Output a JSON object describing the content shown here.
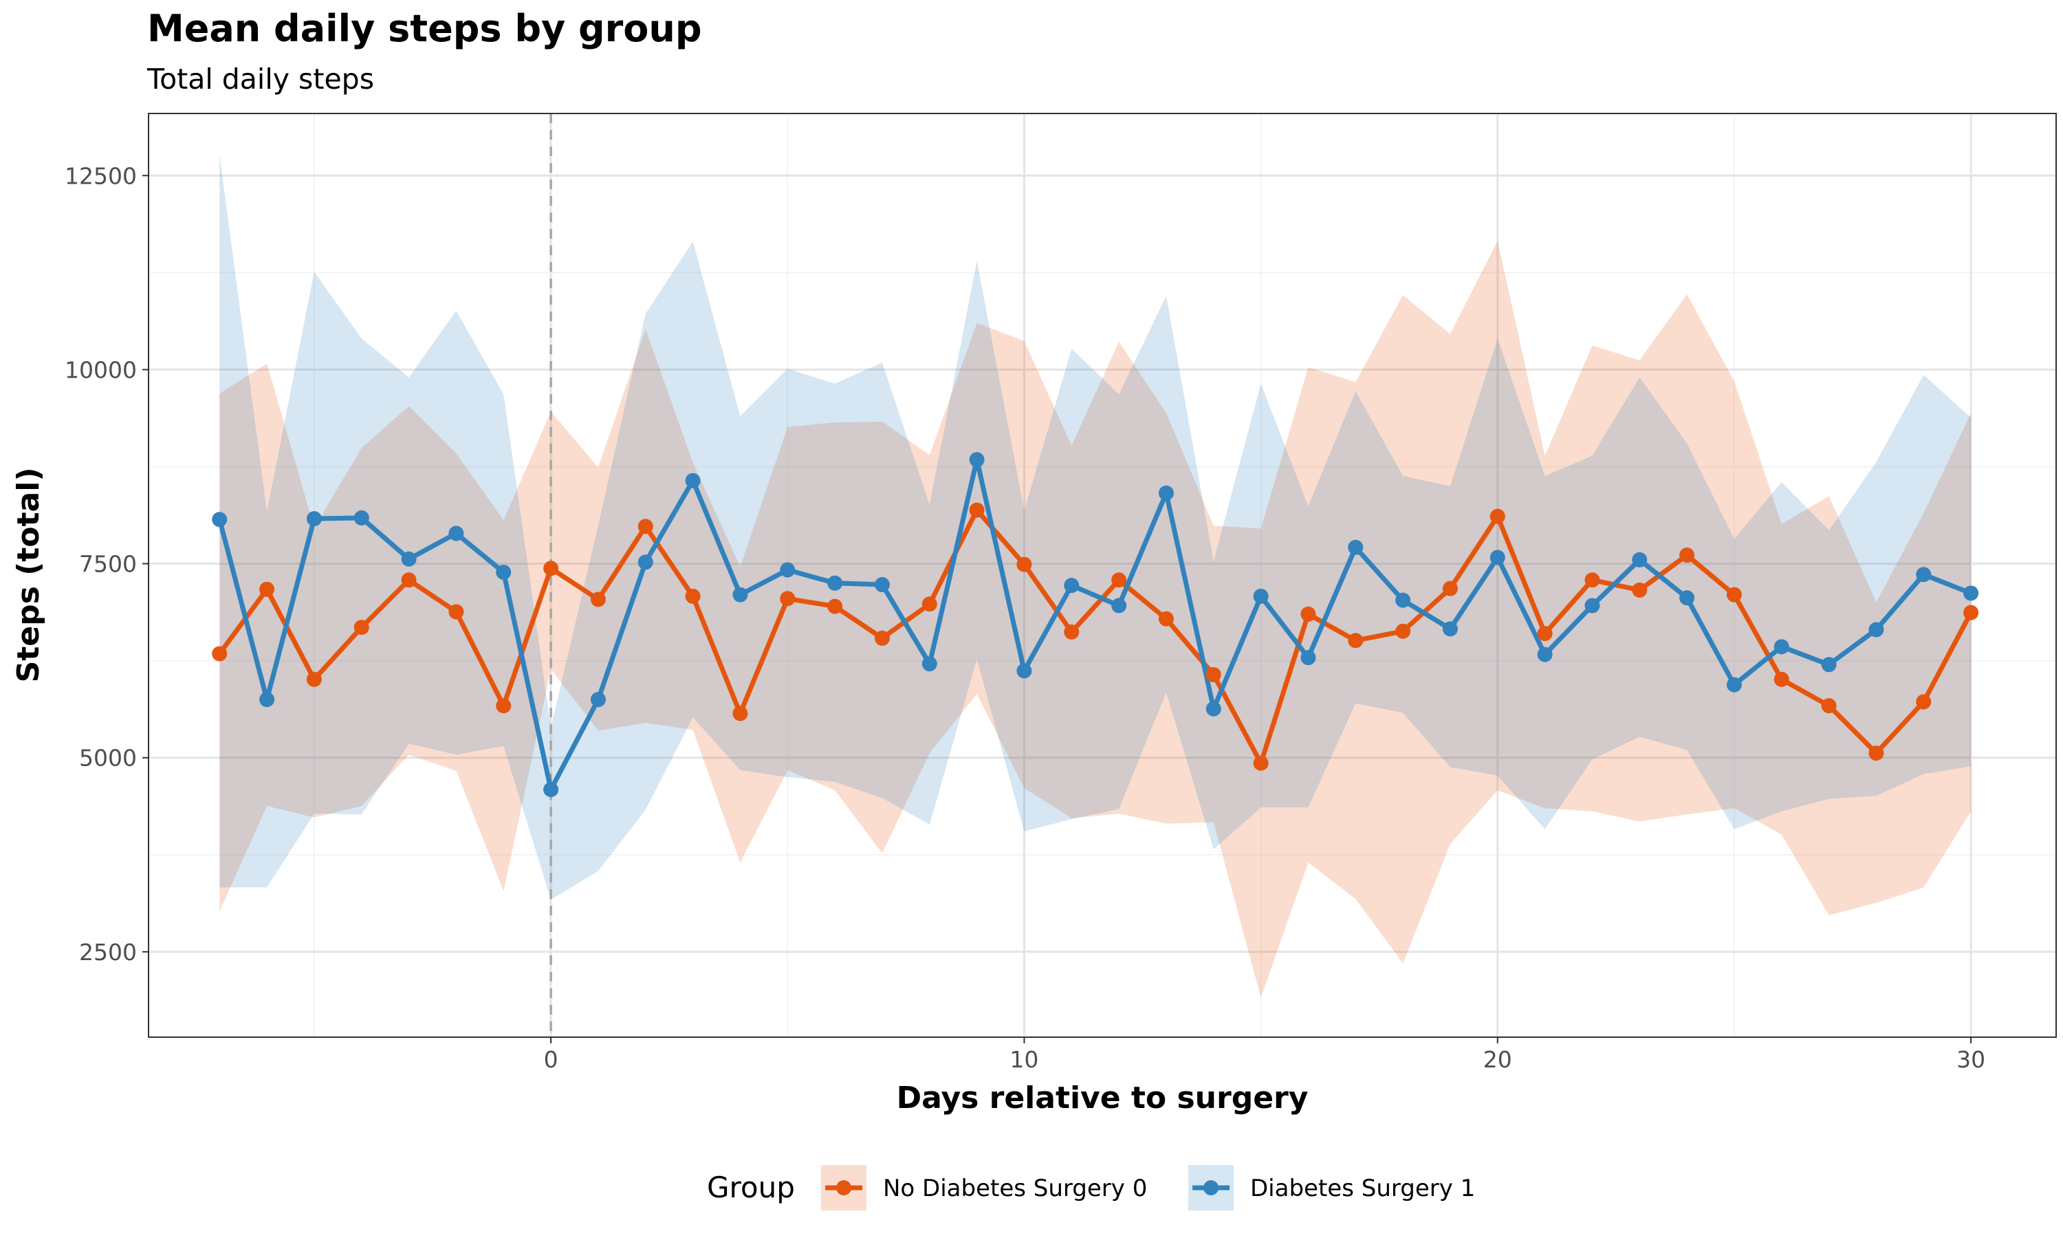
{
  "chart_data": {
    "type": "line",
    "title": "Mean daily steps by group",
    "subtitle": "Total daily steps",
    "xlabel": "Days relative to surgery",
    "ylabel": "Steps (total)",
    "xlim": [
      -8.5,
      31.8
    ],
    "ylim": [
      1400,
      13300
    ],
    "x_ticks": [
      0,
      10,
      20,
      30
    ],
    "x_tick_labels": [
      "0",
      "10",
      "20",
      "30"
    ],
    "y_ticks": [
      2500,
      5000,
      7500,
      10000,
      12500
    ],
    "y_tick_labels": [
      "2500",
      "5000",
      "7500",
      "10000",
      "12500"
    ],
    "grid": true,
    "reference_line_x": 0,
    "legend": {
      "title": "Group",
      "position": "bottom"
    },
    "x": [
      -7,
      -6,
      -5,
      -4,
      -3,
      -2,
      -1,
      0,
      1,
      2,
      3,
      4,
      5,
      6,
      7,
      8,
      9,
      10,
      11,
      12,
      13,
      14,
      15,
      16,
      17,
      18,
      19,
      20,
      21,
      22,
      23,
      24,
      25,
      26,
      27,
      28,
      29,
      30
    ],
    "series": [
      {
        "name": "No Diabetes Surgery 0",
        "color": "#e6550d",
        "fill": "#fbd7c5",
        "values": [
          6340,
          7170,
          6010,
          6680,
          7290,
          6880,
          5670,
          7440,
          7040,
          7980,
          7080,
          5570,
          7050,
          6950,
          6540,
          6980,
          8190,
          7490,
          6620,
          7290,
          6790,
          6070,
          4930,
          6850,
          6510,
          6630,
          7180,
          8110,
          6600,
          7290,
          7160,
          7610,
          7100,
          6010,
          5670,
          5060,
          5720,
          6870
        ],
        "lower": [
          3020,
          4380,
          4230,
          4380,
          5040,
          4830,
          3280,
          6140,
          5350,
          5450,
          5360,
          3650,
          4840,
          4580,
          3770,
          5060,
          5820,
          4610,
          4220,
          4280,
          4150,
          4170,
          1910,
          3650,
          3180,
          2350,
          3890,
          4580,
          4350,
          4310,
          4180,
          4270,
          4350,
          4010,
          2970,
          3130,
          3330,
          4310
        ],
        "upper": [
          9690,
          10080,
          7960,
          8990,
          9530,
          8920,
          8060,
          9460,
          8740,
          10520,
          8800,
          7460,
          9260,
          9320,
          9330,
          8900,
          10600,
          10370,
          9020,
          10360,
          9440,
          7990,
          7950,
          10030,
          9840,
          10960,
          10460,
          11660,
          8890,
          10310,
          10120,
          10970,
          9850,
          8010,
          8370,
          7000,
          8150,
          9440
        ]
      },
      {
        "name": "Diabetes Surgery 1",
        "color": "#3182bd",
        "fill": "#d6e6f4",
        "values": [
          8070,
          5750,
          8080,
          8090,
          7560,
          7890,
          7390,
          4590,
          5750,
          7520,
          8570,
          7100,
          7420,
          7250,
          7230,
          6210,
          8840,
          6120,
          7220,
          6960,
          8410,
          5630,
          7080,
          6290,
          7710,
          7030,
          6660,
          7580,
          6330,
          6960,
          7550,
          7060,
          5940,
          6430,
          6200,
          6650,
          7360,
          7120
        ],
        "lower": [
          3330,
          3330,
          4280,
          4270,
          5180,
          5040,
          5150,
          3170,
          3540,
          4330,
          5520,
          4840,
          4750,
          4690,
          4480,
          4140,
          6270,
          4050,
          4210,
          4340,
          5840,
          3820,
          4360,
          4360,
          5700,
          5580,
          4880,
          4770,
          4080,
          4980,
          5270,
          5100,
          4080,
          4310,
          4470,
          4510,
          4790,
          4890
        ],
        "upper": [
          12760,
          8170,
          11260,
          10400,
          9900,
          10760,
          9680,
          5390,
          7990,
          10720,
          11650,
          9400,
          10010,
          9820,
          10090,
          8260,
          11400,
          8180,
          10270,
          9680,
          10950,
          7530,
          9820,
          8240,
          9720,
          8630,
          8500,
          10400,
          8630,
          8890,
          9900,
          9050,
          7820,
          8550,
          7930,
          8810,
          9930,
          9380
        ]
      }
    ]
  }
}
